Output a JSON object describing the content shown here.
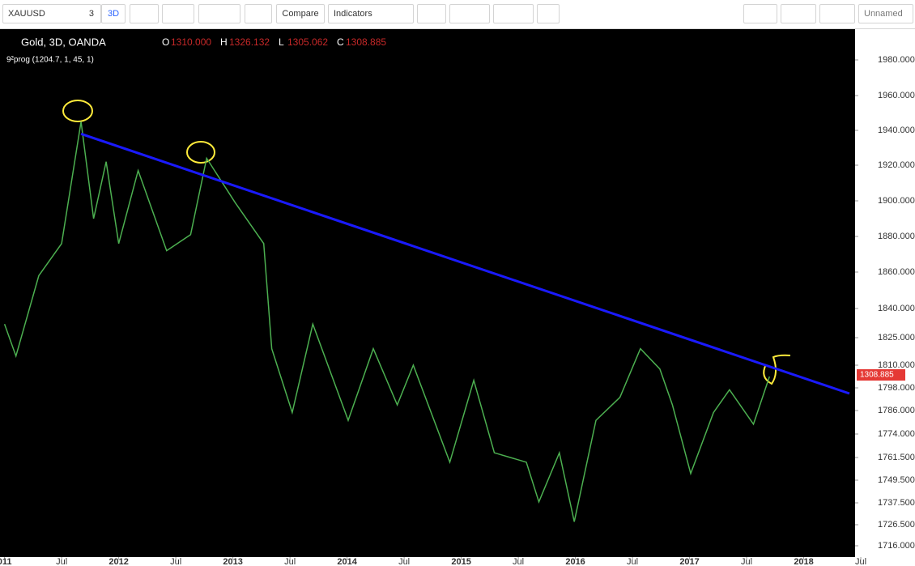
{
  "toolbar": {
    "symbol": "XAUUSD",
    "count": "3",
    "interval": "3D",
    "compare": "Compare",
    "indicators": "Indicators",
    "layout": "Unnamed"
  },
  "chart_data": {
    "type": "line",
    "title": "Gold, 3D, OANDA",
    "header": {
      "open_label": "O",
      "open": "1310.000",
      "high_label": "H",
      "high": "1326.132",
      "low_label": "L",
      "low": "1305.062",
      "close_label": "C",
      "close": "1308.885"
    },
    "indicator": "9²prog (1204.7, 1, 45, 1)",
    "x": [
      2011.0,
      2011.1,
      2011.3,
      2011.5,
      2011.67,
      2011.78,
      2011.89,
      2012.0,
      2012.17,
      2012.42,
      2012.63,
      2012.77,
      2013.02,
      2013.27,
      2013.34,
      2013.52,
      2013.7,
      2014.01,
      2014.23,
      2014.44,
      2014.58,
      2014.9,
      2015.11,
      2015.29,
      2015.57,
      2015.68,
      2015.86,
      2015.99,
      2016.18,
      2016.39,
      2016.57,
      2016.74,
      2016.85,
      2017.01,
      2017.21,
      2017.35,
      2017.56,
      2017.7
    ],
    "series": [
      {
        "name": "XAUUSD",
        "color": "#4caf50",
        "values": [
          1832,
          1815,
          1858,
          1876,
          1945,
          1890,
          1922,
          1876,
          1917,
          1872,
          1881,
          1924,
          1899,
          1876,
          1819,
          1785,
          1832,
          1781,
          1819,
          1789,
          1810,
          1759,
          1802,
          1764,
          1759,
          1738,
          1764,
          1728,
          1781,
          1793,
          1819,
          1808,
          1789,
          1753,
          1785,
          1797,
          1779,
          1804
        ]
      },
      {
        "name": "Trendline",
        "color": "#1a1aff",
        "x": [
          2011.67,
          2018.4
        ],
        "values": [
          1938,
          1795
        ]
      }
    ],
    "xlim": [
      2010.96,
      2018.45
    ],
    "xticks": [
      {
        "value": 2011,
        "label": "011"
      },
      {
        "value": 2011.5,
        "label": "Jul"
      },
      2012,
      {
        "value": 2012.5,
        "label": "Jul"
      },
      2013,
      {
        "value": 2013.5,
        "label": "Jul"
      },
      2014,
      {
        "value": 2014.5,
        "label": "Jul"
      },
      2015,
      {
        "value": 2015.5,
        "label": "Jul"
      },
      2016,
      {
        "value": 2016.5,
        "label": "Jul"
      },
      2017,
      {
        "value": 2017.5,
        "label": "Jul"
      },
      2018,
      {
        "value": 2018.5,
        "label": "Jul"
      }
    ],
    "ylim": [
      1716,
      1997
    ],
    "yticks": [
      {
        "value": 1980,
        "label": "1980.000"
      },
      {
        "value": 1960,
        "label": "1960.000"
      },
      {
        "value": 1940,
        "label": "1940.000"
      },
      {
        "value": 1920,
        "label": "1920.000"
      },
      {
        "value": 1900,
        "label": "1900.000"
      },
      {
        "value": 1880,
        "label": "1880.000"
      },
      {
        "value": 1860,
        "label": "1860.000"
      },
      {
        "value": 1840,
        "label": "1840.000"
      },
      {
        "value": 1825,
        "label": "1825.000"
      },
      {
        "value": 1810,
        "label": "1810.000"
      },
      {
        "value": 1798,
        "label": "1798.000"
      },
      {
        "value": 1786,
        "label": "1786.000"
      },
      {
        "value": 1774,
        "label": "1774.000"
      },
      {
        "value": 1761.5,
        "label": "1761.500"
      },
      {
        "value": 1749.5,
        "label": "1749.500"
      },
      {
        "value": 1737.5,
        "label": "1737.500"
      },
      {
        "value": 1726.5,
        "label": "1726.500"
      },
      {
        "value": 1716,
        "label": "1716.000"
      }
    ]
  }
}
